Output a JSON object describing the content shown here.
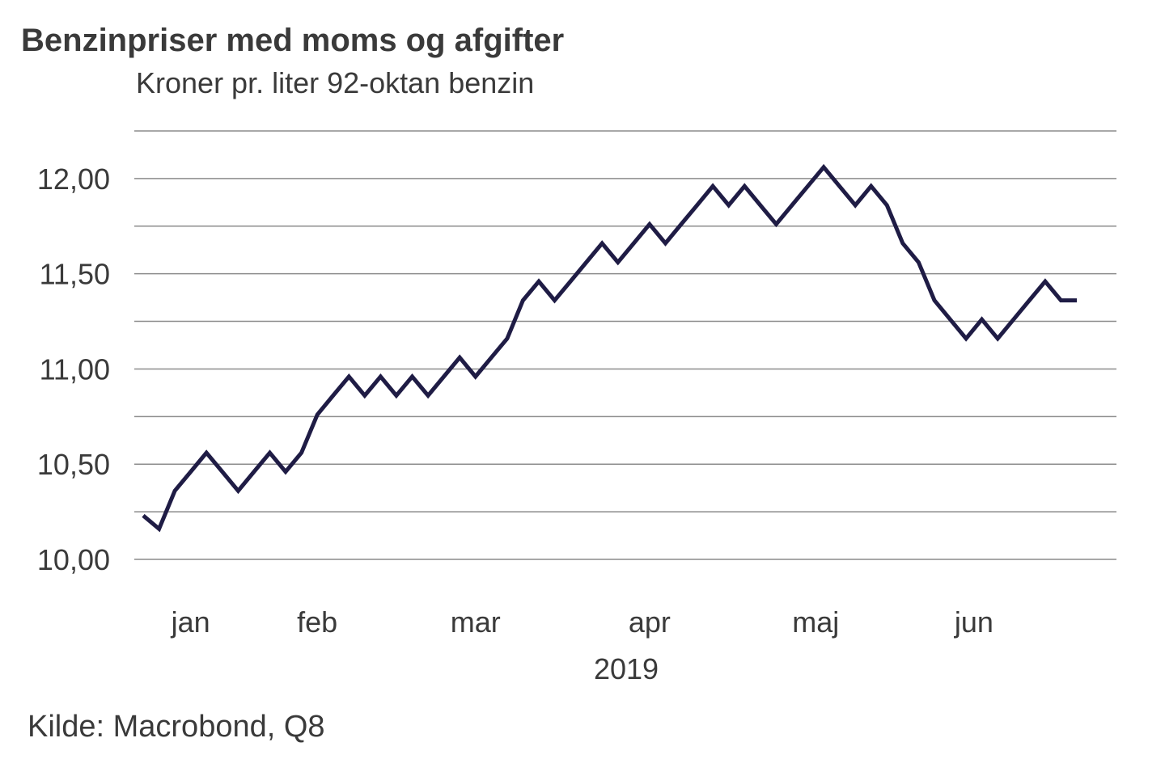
{
  "chart_data": {
    "type": "line",
    "title": "Benzinpriser med moms og afgifter",
    "subtitle": "Kroner pr. liter 92-oktan benzin",
    "source": "Kilde: Macrobond, Q8",
    "year_label": "2019",
    "ylim": [
      10.0,
      12.25
    ],
    "y_ticks": [
      10.0,
      10.5,
      11.0,
      11.5,
      12.0
    ],
    "y_tick_labels": [
      "10,00",
      "10,50",
      "11,00",
      "11,50",
      "12,00"
    ],
    "grid_step": 0.25,
    "grid": true,
    "x_tick_labels": [
      "jan",
      "feb",
      "mar",
      "apr",
      "maj",
      "jun"
    ],
    "x_tick_positions": [
      3,
      11,
      21,
      32,
      42.5,
      52.5
    ],
    "xlim": [
      0,
      60
    ],
    "line_color": "#1f1c45",
    "series": [
      {
        "name": "",
        "x": [
          0,
          1,
          2,
          3,
          4,
          5,
          6,
          7,
          8,
          9,
          10,
          11,
          12,
          13,
          14,
          15,
          16,
          17,
          18,
          19,
          20,
          21,
          22,
          23,
          24,
          25,
          26,
          27,
          28,
          29,
          30,
          31,
          32,
          33,
          34,
          35,
          36,
          37,
          38,
          39,
          40,
          41,
          42,
          43,
          44,
          45,
          46,
          47,
          48,
          49,
          50,
          51,
          52,
          53,
          54,
          55,
          56,
          57,
          58,
          59
        ],
        "values": [
          10.23,
          10.16,
          10.36,
          10.46,
          10.56,
          10.46,
          10.36,
          10.46,
          10.56,
          10.46,
          10.56,
          10.76,
          10.86,
          10.96,
          10.86,
          10.96,
          10.86,
          10.96,
          10.86,
          10.96,
          11.06,
          10.96,
          11.06,
          11.16,
          11.36,
          11.46,
          11.36,
          11.46,
          11.56,
          11.66,
          11.56,
          11.66,
          11.76,
          11.66,
          11.76,
          11.86,
          11.96,
          11.86,
          11.96,
          11.86,
          11.76,
          11.86,
          11.96,
          12.06,
          11.96,
          11.86,
          11.96,
          11.86,
          11.66,
          11.56,
          11.36,
          11.26,
          11.16,
          11.26,
          11.16,
          11.26,
          11.36,
          11.46,
          11.36,
          11.36
        ]
      }
    ]
  }
}
